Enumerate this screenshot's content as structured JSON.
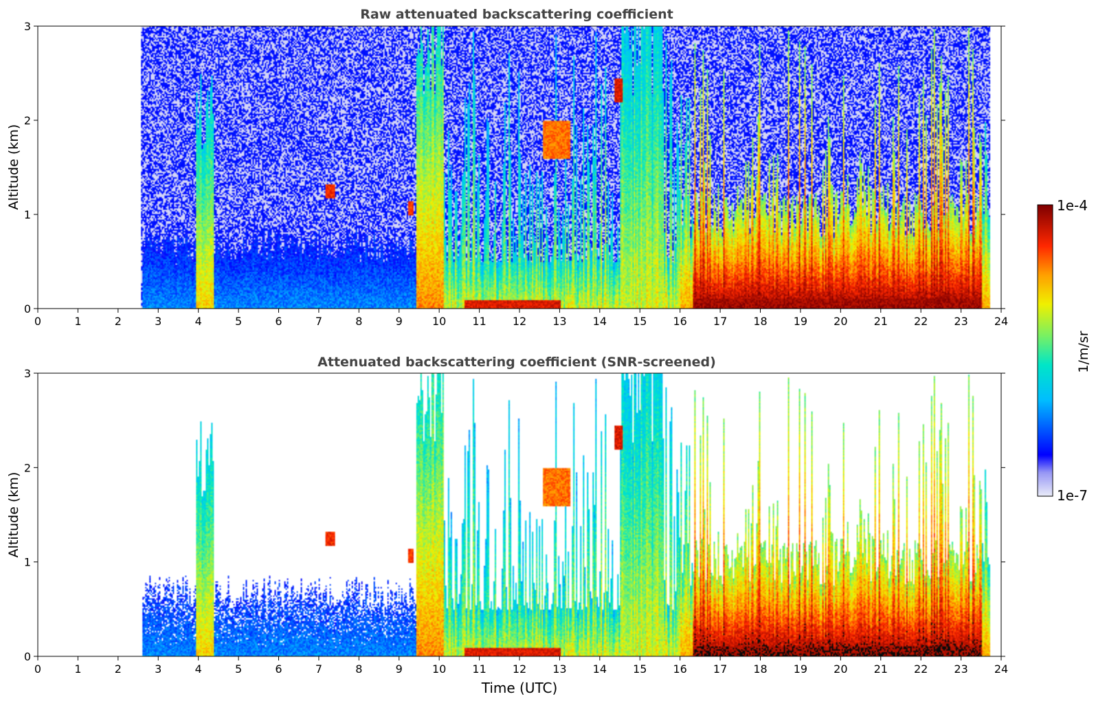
{
  "chart_data": [
    {
      "type": "heatmap",
      "title": "Raw attenuated backscattering coefficient",
      "xlabel": "",
      "ylabel": "Altitude (km)",
      "xlim": [
        0,
        24
      ],
      "ylim": [
        0,
        3
      ],
      "xticks": [
        "0",
        "1",
        "2",
        "3",
        "4",
        "5",
        "6",
        "7",
        "8",
        "9",
        "10",
        "11",
        "12",
        "13",
        "14",
        "15",
        "16",
        "17",
        "18",
        "19",
        "20",
        "21",
        "22",
        "23",
        "24"
      ],
      "yticks": [
        "0",
        "1",
        "2",
        "3"
      ],
      "data_start_hour": 2.55,
      "data_end_hour": 23.7,
      "screened": false,
      "features": [
        {
          "name": "fog / boundary-layer haze",
          "start": 2.6,
          "end": 9.5,
          "top": 0.7,
          "level": 0.28
        },
        {
          "name": "early cloud column",
          "center": 4.15,
          "width": 0.22,
          "base": 0.0,
          "top": 2.0,
          "level": 0.7
        },
        {
          "name": "isolated cloud",
          "center": 7.28,
          "width": 0.12,
          "base": 1.18,
          "top": 1.32,
          "level": 0.92
        },
        {
          "name": "isolated cloud",
          "center": 9.28,
          "width": 0.06,
          "base": 1.0,
          "top": 1.15,
          "level": 0.9
        },
        {
          "name": "precipitation band",
          "center": 9.75,
          "width": 0.35,
          "base": 0.0,
          "top": 3.0,
          "level": 0.78
        },
        {
          "name": "cloud layer",
          "center": 12.9,
          "width": 0.35,
          "base": 1.6,
          "top": 2.0,
          "level": 0.85
        },
        {
          "name": "cloud",
          "center": 14.45,
          "width": 0.1,
          "base": 2.2,
          "top": 2.45,
          "level": 0.95
        },
        {
          "name": "convective columns",
          "start": 14.5,
          "end": 15.6,
          "top": 3.0,
          "level": 0.6
        },
        {
          "name": "near-surface layer",
          "start": 16.0,
          "end": 23.7,
          "top": 1.0,
          "level": 0.75
        },
        {
          "name": "surface returns",
          "start": 16.3,
          "end": 23.5,
          "top": 0.12,
          "level": 0.98
        }
      ]
    },
    {
      "type": "heatmap",
      "title": "Attenuated backscattering coefficient (SNR-screened)",
      "xlabel": "Time (UTC)",
      "ylabel": "Altitude (km)",
      "xlim": [
        0,
        24
      ],
      "ylim": [
        0,
        3
      ],
      "xticks": [
        "0",
        "1",
        "2",
        "3",
        "4",
        "5",
        "6",
        "7",
        "8",
        "9",
        "10",
        "11",
        "12",
        "13",
        "14",
        "15",
        "16",
        "17",
        "18",
        "19",
        "20",
        "21",
        "22",
        "23",
        "24"
      ],
      "yticks": [
        "0",
        "1",
        "2",
        "3"
      ],
      "data_start_hour": 2.55,
      "data_end_hour": 23.7,
      "screened": true
    }
  ],
  "colorbar": {
    "label": "1/m/sr",
    "max_label": "1e-4",
    "min_label": "1e-7",
    "scale": "log",
    "colormap": "jet",
    "low_color": "#e8eaf8",
    "high_color": "#800000"
  }
}
